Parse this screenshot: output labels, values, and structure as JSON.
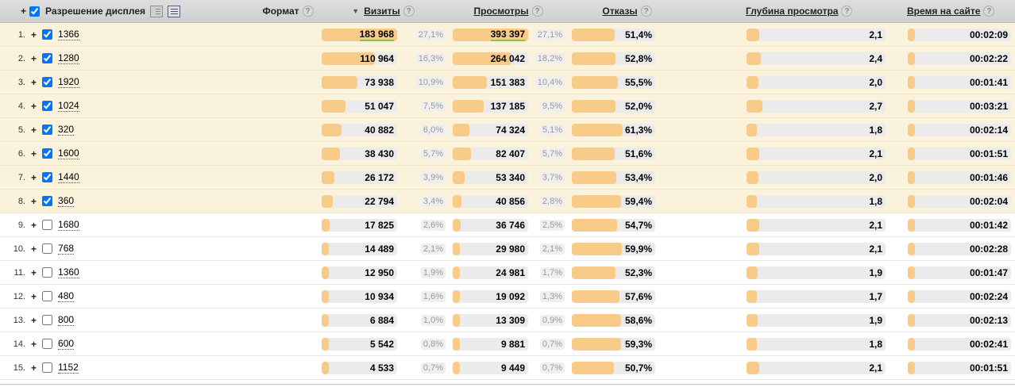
{
  "icons": {
    "plus": "+",
    "sort_desc": "▼",
    "help": "?"
  },
  "colors": {
    "bar_fill": "#f9cb88",
    "bar_track": "#ebebeb",
    "checked_row_bg": "#fbf2dc",
    "header_bg": "#d6d6d6",
    "highlight_underline": "#8cc63f",
    "pct_text": "#999999"
  },
  "header": {
    "expand_all": "+",
    "resolution_label": "Разрешение дисплея",
    "format_label": "Формат",
    "visits_label": "Визиты",
    "views_label": "Просмотры",
    "bounce_label": "Отказы",
    "depth_label": "Глубина просмотра",
    "time_label": "Время на сайте"
  },
  "rows": [
    {
      "num": "1.",
      "checked": true,
      "resolution": "1366",
      "visits": "183 968",
      "visits_pct": "27,1%",
      "visits_bar": 100,
      "visits_hl": true,
      "views": "393 397",
      "views_pct": "27,1%",
      "views_bar": 100,
      "views_hl": true,
      "bounce": "51,4%",
      "bounce_bar": 51.4,
      "depth": "2,1",
      "depth_bar": 9,
      "time": "00:02:09",
      "time_bar": 4.3
    },
    {
      "num": "2.",
      "checked": true,
      "resolution": "1280",
      "visits": "110 964",
      "visits_pct": "16,3%",
      "visits_bar": 70,
      "visits_hl": false,
      "views": "264 042",
      "views_pct": "18,2%",
      "views_bar": 78,
      "views_hl": false,
      "bounce": "52,8%",
      "bounce_bar": 52.8,
      "depth": "2,4",
      "depth_bar": 10.3,
      "time": "00:02:22",
      "time_bar": 4.7
    },
    {
      "num": "3.",
      "checked": true,
      "resolution": "1920",
      "visits": "73 938",
      "visits_pct": "10,9%",
      "visits_bar": 47,
      "visits_hl": false,
      "views": "151 383",
      "views_pct": "10,4%",
      "views_bar": 45,
      "views_hl": false,
      "bounce": "55,5%",
      "bounce_bar": 55.5,
      "depth": "2,0",
      "depth_bar": 8.6,
      "time": "00:01:41",
      "time_bar": 3.3
    },
    {
      "num": "4.",
      "checked": true,
      "resolution": "1024",
      "visits": "51 047",
      "visits_pct": "7,5%",
      "visits_bar": 32,
      "visits_hl": false,
      "views": "137 185",
      "views_pct": "9,5%",
      "views_bar": 41,
      "views_hl": false,
      "bounce": "52,0%",
      "bounce_bar": 52.0,
      "depth": "2,7",
      "depth_bar": 11.6,
      "time": "00:03:21",
      "time_bar": 6.6
    },
    {
      "num": "5.",
      "checked": true,
      "resolution": "320",
      "visits": "40 882",
      "visits_pct": "6,0%",
      "visits_bar": 26,
      "visits_hl": false,
      "views": "74 324",
      "views_pct": "5,1%",
      "views_bar": 22,
      "views_hl": false,
      "bounce": "61,3%",
      "bounce_bar": 61.3,
      "depth": "1,8",
      "depth_bar": 7.7,
      "time": "00:02:14",
      "time_bar": 4.4
    },
    {
      "num": "6.",
      "checked": true,
      "resolution": "1600",
      "visits": "38 430",
      "visits_pct": "5,7%",
      "visits_bar": 24.5,
      "visits_hl": false,
      "views": "82 407",
      "views_pct": "5,7%",
      "views_bar": 24.5,
      "views_hl": false,
      "bounce": "51,6%",
      "bounce_bar": 51.6,
      "depth": "2,1",
      "depth_bar": 9,
      "time": "00:01:51",
      "time_bar": 3.7
    },
    {
      "num": "7.",
      "checked": true,
      "resolution": "1440",
      "visits": "26 172",
      "visits_pct": "3,9%",
      "visits_bar": 17,
      "visits_hl": false,
      "views": "53 340",
      "views_pct": "3,7%",
      "views_bar": 16,
      "views_hl": false,
      "bounce": "53,4%",
      "bounce_bar": 53.4,
      "depth": "2,0",
      "depth_bar": 8.6,
      "time": "00:01:46",
      "time_bar": 3.5
    },
    {
      "num": "8.",
      "checked": true,
      "resolution": "360",
      "visits": "22 794",
      "visits_pct": "3,4%",
      "visits_bar": 15,
      "visits_hl": false,
      "views": "40 856",
      "views_pct": "2,8%",
      "views_bar": 12,
      "views_hl": false,
      "bounce": "59,4%",
      "bounce_bar": 59.4,
      "depth": "1,8",
      "depth_bar": 7.7,
      "time": "00:02:04",
      "time_bar": 4.1
    },
    {
      "num": "9.",
      "checked": false,
      "resolution": "1680",
      "visits": "17 825",
      "visits_pct": "2,6%",
      "visits_bar": 11,
      "visits_hl": false,
      "views": "36 746",
      "views_pct": "2,5%",
      "views_bar": 11,
      "views_hl": false,
      "bounce": "54,7%",
      "bounce_bar": 54.7,
      "depth": "2,1",
      "depth_bar": 9,
      "time": "00:01:42",
      "time_bar": 3.4
    },
    {
      "num": "10.",
      "checked": false,
      "resolution": "768",
      "visits": "14 489",
      "visits_pct": "2,1%",
      "visits_bar": 9,
      "visits_hl": false,
      "views": "29 980",
      "views_pct": "2,1%",
      "views_bar": 9,
      "views_hl": false,
      "bounce": "59,9%",
      "bounce_bar": 59.9,
      "depth": "2,1",
      "depth_bar": 9,
      "time": "00:02:28",
      "time_bar": 4.9
    },
    {
      "num": "11.",
      "checked": false,
      "resolution": "1360",
      "visits": "12 950",
      "visits_pct": "1,9%",
      "visits_bar": 8,
      "visits_hl": false,
      "views": "24 981",
      "views_pct": "1,7%",
      "views_bar": 7.5,
      "views_hl": false,
      "bounce": "52,3%",
      "bounce_bar": 52.3,
      "depth": "1,9",
      "depth_bar": 8.2,
      "time": "00:01:47",
      "time_bar": 3.5
    },
    {
      "num": "12.",
      "checked": false,
      "resolution": "480",
      "visits": "10 934",
      "visits_pct": "1,6%",
      "visits_bar": 7,
      "visits_hl": false,
      "views": "19 092",
      "views_pct": "1,3%",
      "views_bar": 6,
      "views_hl": false,
      "bounce": "57,6%",
      "bounce_bar": 57.6,
      "depth": "1,7",
      "depth_bar": 7.3,
      "time": "00:02:24",
      "time_bar": 4.8
    },
    {
      "num": "13.",
      "checked": false,
      "resolution": "800",
      "visits": "6 884",
      "visits_pct": "1,0%",
      "visits_bar": 4.5,
      "visits_hl": false,
      "views": "13 309",
      "views_pct": "0,9%",
      "views_bar": 4,
      "views_hl": false,
      "bounce": "58,6%",
      "bounce_bar": 58.6,
      "depth": "1,9",
      "depth_bar": 8.2,
      "time": "00:02:13",
      "time_bar": 4.4
    },
    {
      "num": "14.",
      "checked": false,
      "resolution": "600",
      "visits": "5 542",
      "visits_pct": "0,8%",
      "visits_bar": 3.5,
      "visits_hl": false,
      "views": "9 881",
      "views_pct": "0,7%",
      "views_bar": 3,
      "views_hl": false,
      "bounce": "59,3%",
      "bounce_bar": 59.3,
      "depth": "1,8",
      "depth_bar": 7.7,
      "time": "00:02:41",
      "time_bar": 5.3
    },
    {
      "num": "15.",
      "checked": false,
      "resolution": "1152",
      "visits": "4 533",
      "visits_pct": "0,7%",
      "visits_bar": 3,
      "visits_hl": false,
      "views": "9 449",
      "views_pct": "0,7%",
      "views_bar": 3,
      "views_hl": false,
      "bounce": "50,7%",
      "bounce_bar": 50.7,
      "depth": "2,1",
      "depth_bar": 9,
      "time": "00:01:51",
      "time_bar": 3.7
    }
  ]
}
